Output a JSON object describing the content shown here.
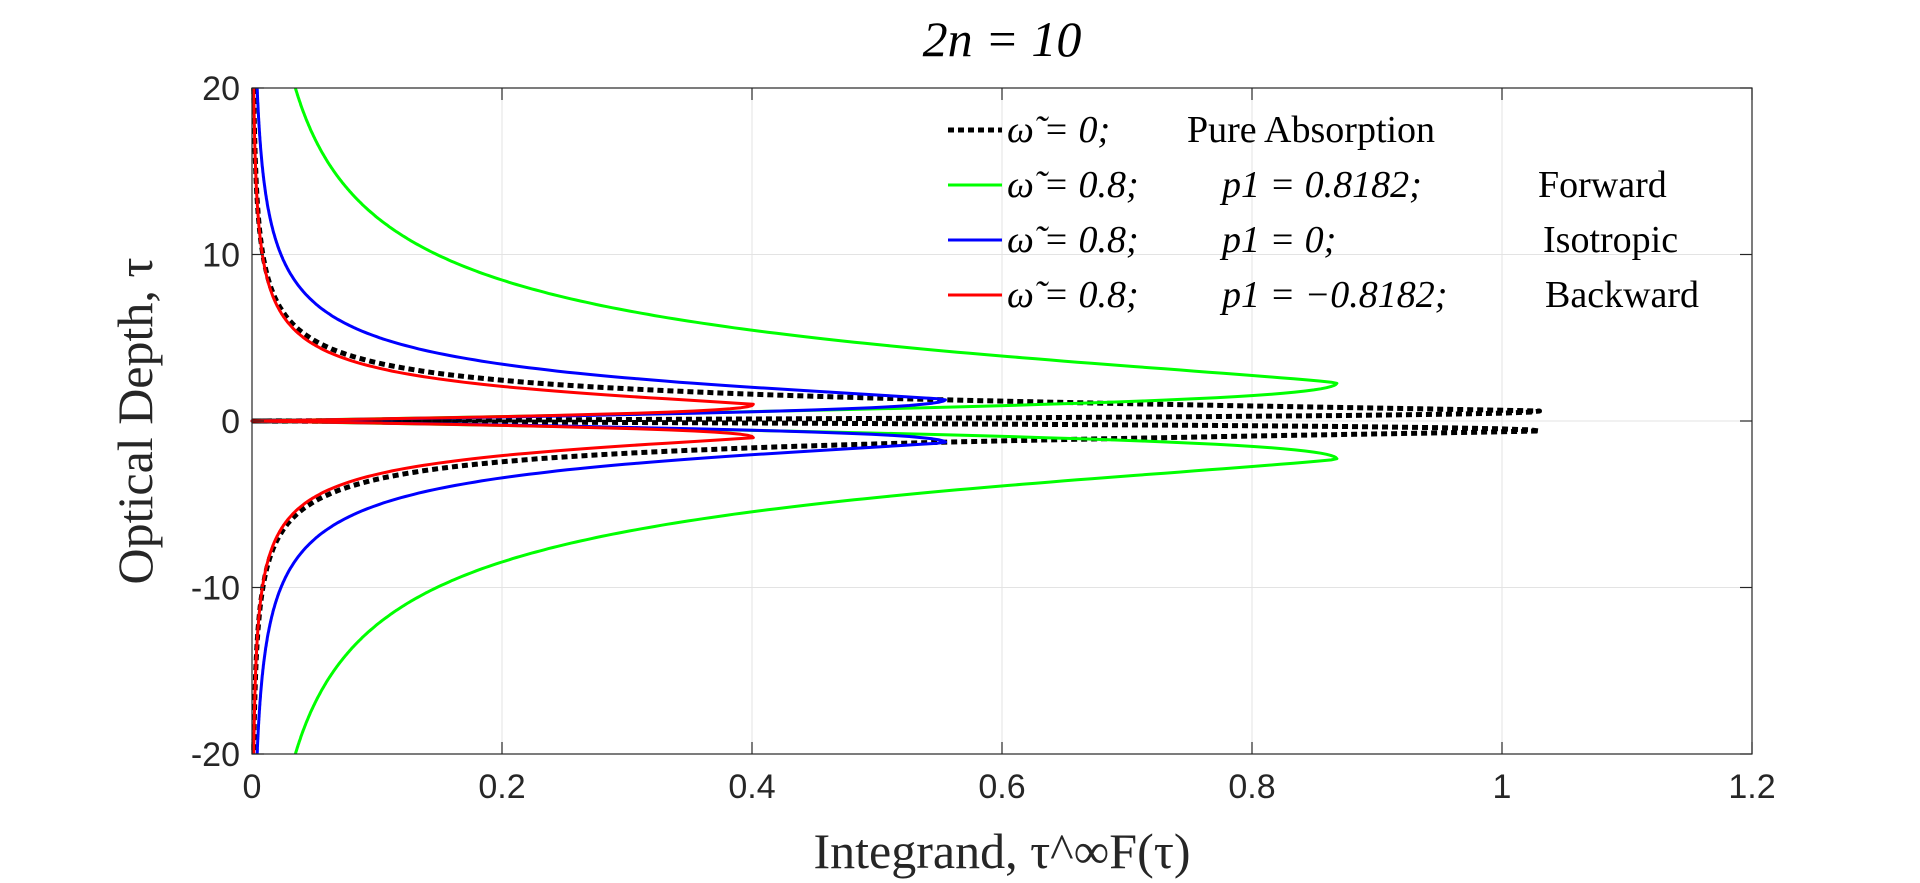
{
  "chart_data": {
    "type": "line",
    "title": "2n = 10",
    "xlabel": "Integrand, τ^∞F(τ)",
    "ylabel": "Optical Depth, τ",
    "xlim": [
      0,
      1.2
    ],
    "ylim": [
      -20,
      20
    ],
    "xticks": [
      0,
      0.2,
      0.4,
      0.6,
      0.8,
      1,
      1.2
    ],
    "xtick_labels": [
      "0",
      "0.2",
      "0.4",
      "0.6",
      "0.8",
      "1",
      "1.2"
    ],
    "yticks": [
      -20,
      -10,
      0,
      10,
      20
    ],
    "ytick_labels": [
      "-20",
      "-10",
      "0",
      "10",
      "20"
    ],
    "grid": true,
    "legend_position": "top-right",
    "series": [
      {
        "name": "ω̃ = 0; Pure Absorption",
        "legend_parts": [
          "ω̃ = 0;",
          "Pure Absorption",
          "",
          ""
        ],
        "color": "#000000",
        "style": "dotted",
        "peak_value": 1.03,
        "peak_tau": 0.6,
        "tail_scale": 2.8
      },
      {
        "name": "ω̃ = 0.8; p1 = 0.8182; Forward",
        "legend_parts": [
          "ω̃ = 0.8;",
          "p1 = 0.8182;",
          "Forward",
          ""
        ],
        "color": "#00ff00",
        "style": "solid",
        "peak_value": 0.868,
        "peak_tau": 2.3,
        "tail_scale": 10.5
      },
      {
        "name": "ω̃ = 0.8; p1 = 0; Isotropic",
        "legend_parts": [
          "ω̃ = 0.8;",
          "p1 = 0;",
          "Isotropic",
          ""
        ],
        "color": "#0000ff",
        "style": "solid",
        "peak_value": 0.555,
        "peak_tau": 1.3,
        "tail_scale": 4.6
      },
      {
        "name": "ω̃ = 0.8; p1 = −0.8182; Backward",
        "legend_parts": [
          "ω̃ = 0.8;",
          "p1 = −0.8182;",
          "Backward",
          ""
        ],
        "color": "#ff0000",
        "style": "solid",
        "peak_value": 0.401,
        "peak_tau": 1.0,
        "tail_scale": 3.3
      }
    ]
  }
}
